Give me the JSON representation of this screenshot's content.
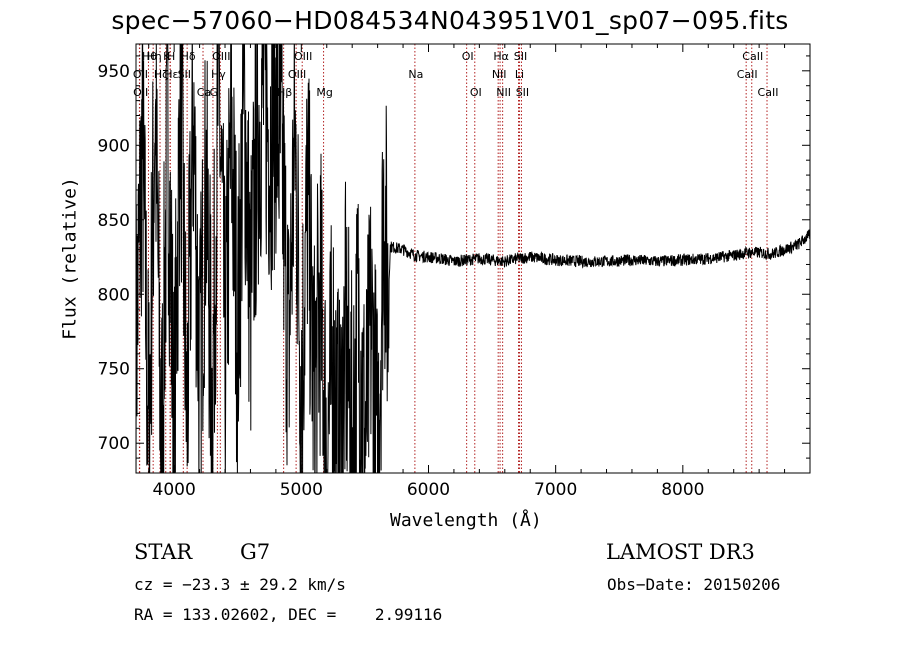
{
  "chart_data": {
    "type": "line",
    "title": "spec−57060−HD084534N043951V01_sp07−095.fits",
    "xlabel": "Wavelength (Å)",
    "ylabel": "Flux (relative)",
    "xlim": [
      3700,
      9000
    ],
    "ylim": [
      680,
      968
    ],
    "xticks": [
      4000,
      5000,
      6000,
      7000,
      8000
    ],
    "yticks": [
      700,
      750,
      800,
      850,
      900,
      950
    ],
    "series": [
      {
        "name": "flux",
        "x": [
          3700,
          3750,
          3800,
          3850,
          3900,
          3950,
          4000,
          4050,
          4100,
          4150,
          4200,
          4250,
          4300,
          4350,
          4400,
          4450,
          4500,
          4550,
          4600,
          4650,
          4700,
          4750,
          4800,
          4850,
          4900,
          4950,
          5000,
          5050,
          5100,
          5150,
          5200,
          5250,
          5300,
          5350,
          5400,
          5450,
          5500,
          5550,
          5600,
          5650,
          5680,
          5700,
          5800,
          5900,
          6000,
          6100,
          6200,
          6300,
          6400,
          6500,
          6600,
          6700,
          6800,
          6900,
          7000,
          7200,
          7400,
          7600,
          7800,
          8000,
          8200,
          8400,
          8500,
          8600,
          8700,
          8800,
          8900,
          9000
        ],
        "values": [
          760,
          905,
          700,
          930,
          690,
          915,
          700,
          945,
          710,
          925,
          740,
          880,
          720,
          950,
          760,
          905,
          770,
          935,
          790,
          900,
          940,
          905,
          930,
          880,
          760,
          910,
          740,
          870,
          730,
          800,
          695,
          760,
          690,
          770,
          700,
          790,
          700,
          780,
          690,
          870,
          790,
          832,
          830,
          826,
          825,
          824,
          822,
          823,
          824,
          823,
          822,
          824,
          825,
          824,
          823,
          822,
          822,
          823,
          822,
          823,
          824,
          826,
          828,
          828,
          827,
          830,
          833,
          840
        ]
      }
    ],
    "lines": [
      {
        "label": "Hθ",
        "wavelength": 3798,
        "row": 0
      },
      {
        "label": "Hη",
        "wavelength": 3835,
        "row": 0
      },
      {
        "label": "K",
        "wavelength": 3934,
        "row": 0
      },
      {
        "label": "H",
        "wavelength": 3968,
        "row": 0
      },
      {
        "label": "Hδ",
        "wavelength": 4102,
        "row": 0
      },
      {
        "label": "OII",
        "wavelength": 3727,
        "row": 1
      },
      {
        "label": "Hζ",
        "wavelength": 3889,
        "row": 1
      },
      {
        "label": "Hε",
        "wavelength": 3970,
        "row": 1
      },
      {
        "label": "SII",
        "wavelength": 4072,
        "row": 1
      },
      {
        "label": "Hγ",
        "wavelength": 4340,
        "row": 1
      },
      {
        "label": "OIII",
        "wavelength": 4363,
        "row": 0
      },
      {
        "label": "G",
        "wavelength": 4305,
        "row": 2
      },
      {
        "label": "OII",
        "wavelength": 3729,
        "row": 2
      },
      {
        "label": "Ca",
        "wavelength": 4227,
        "row": 2
      },
      {
        "label": "Hβ",
        "wavelength": 4861,
        "row": 2
      },
      {
        "label": "OIII",
        "wavelength": 4959,
        "row": 1
      },
      {
        "label": "OIII",
        "wavelength": 5007,
        "row": 0
      },
      {
        "label": "Mg",
        "wavelength": 5175,
        "row": 2
      },
      {
        "label": "Na",
        "wavelength": 5893,
        "row": 1
      },
      {
        "label": "OI",
        "wavelength": 6300,
        "row": 0
      },
      {
        "label": "OI",
        "wavelength": 6364,
        "row": 2
      },
      {
        "label": "NII",
        "wavelength": 6548,
        "row": 1
      },
      {
        "label": "Hα",
        "wavelength": 6563,
        "row": 0
      },
      {
        "label": "NII",
        "wavelength": 6583,
        "row": 2
      },
      {
        "label": "Li",
        "wavelength": 6708,
        "row": 1
      },
      {
        "label": "SII",
        "wavelength": 6716,
        "row": 0
      },
      {
        "label": "SII",
        "wavelength": 6731,
        "row": 2
      },
      {
        "label": "CaII",
        "wavelength": 8498,
        "row": 1
      },
      {
        "label": "CaII",
        "wavelength": 8542,
        "row": 0
      },
      {
        "label": "CaII",
        "wavelength": 8662,
        "row": 2
      }
    ]
  },
  "info": {
    "object_class": "STAR",
    "subclass": "G7",
    "survey": "LAMOST DR3",
    "cz": "cz = −23.3 ± 29.2 km/s",
    "obs_date": "Obs−Date: 20150206",
    "coords": "RA = 133.02602, DEC =    2.99116"
  }
}
